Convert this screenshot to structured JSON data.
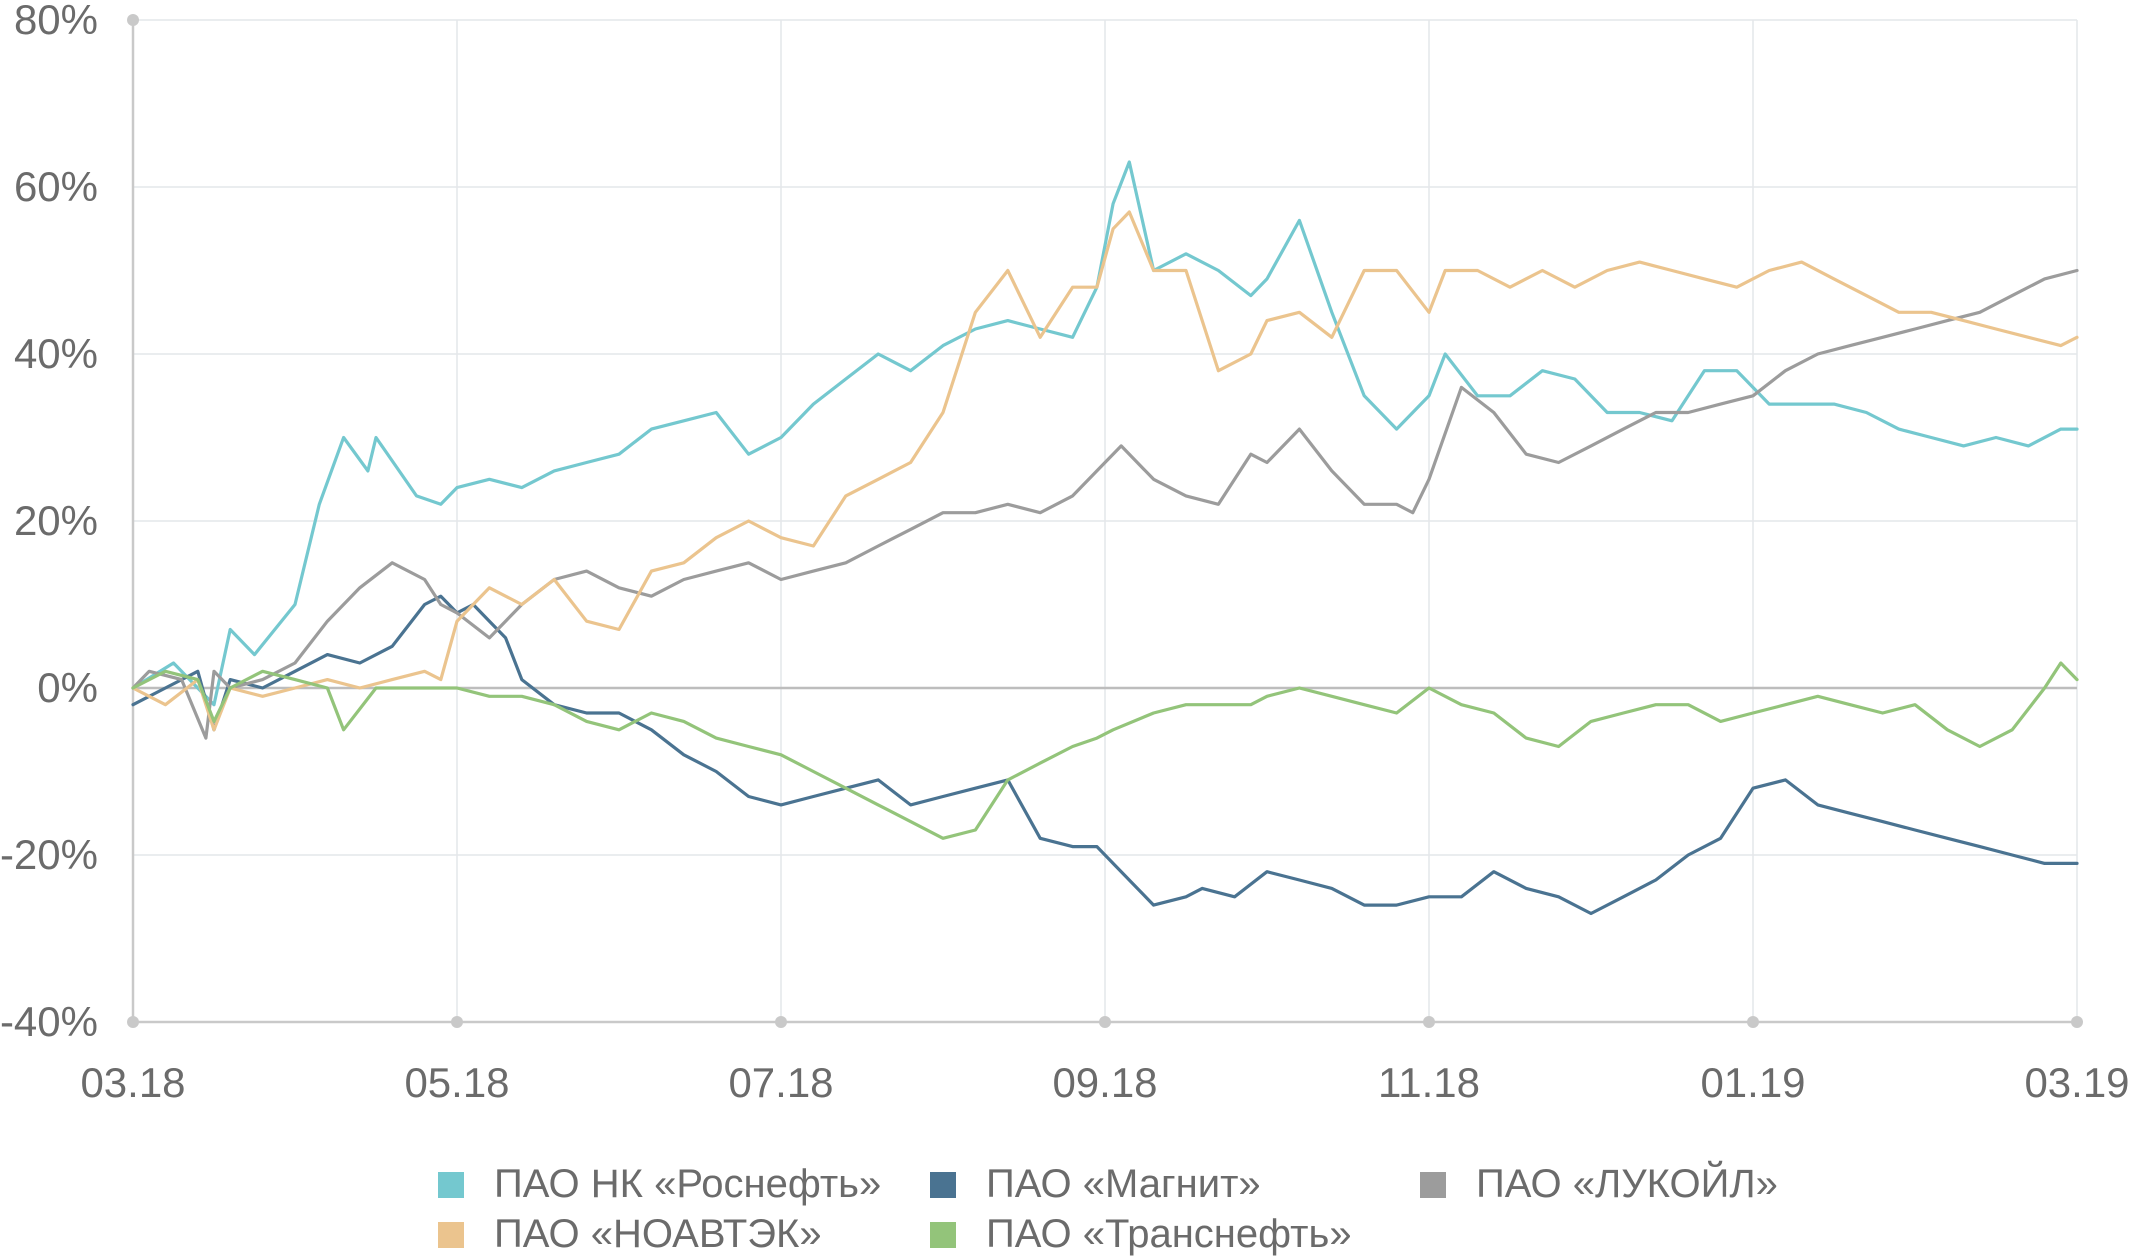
{
  "chart_data": {
    "type": "line",
    "title": "",
    "xlabel": "",
    "ylabel": "",
    "ylim": [
      -40,
      80
    ],
    "y_ticks": [
      -40,
      -20,
      0,
      20,
      40,
      60,
      80
    ],
    "y_tick_labels": [
      "-40%",
      "-20%",
      "0%",
      "20%",
      "40%",
      "60%",
      "80%"
    ],
    "x_tick_labels": [
      "03.18",
      "05.18",
      "07.18",
      "09.18",
      "11.18",
      "01.19",
      "03.19"
    ],
    "x_range": [
      0,
      12
    ],
    "grid": true,
    "legend_position": "bottom",
    "series": [
      {
        "name": "ПАО НК «Роснефть»",
        "color": "#74c8cf",
        "x": [
          0,
          0.25,
          0.5,
          0.6,
          0.75,
          1.0,
          1.15,
          1.3,
          1.45,
          1.5,
          1.75,
          1.9,
          2.0,
          2.2,
          2.4,
          2.6,
          2.8,
          3.0,
          3.2,
          3.4,
          3.6,
          3.8,
          4.0,
          4.2,
          4.4,
          4.6,
          4.8,
          5.0,
          5.2,
          5.4,
          5.6,
          5.8,
          5.95,
          6.05,
          6.15,
          6.3,
          6.5,
          6.7,
          6.9,
          7.0,
          7.2,
          7.4,
          7.6,
          7.8,
          8.0,
          8.1,
          8.3,
          8.5,
          8.7,
          8.9,
          9.1,
          9.3,
          9.5,
          9.7,
          9.9,
          10.1,
          10.3,
          10.5,
          10.7,
          10.9,
          11.1,
          11.3,
          11.5,
          11.7,
          11.9,
          12.0
        ],
        "values": [
          0,
          3,
          -2,
          7,
          4,
          10,
          22,
          30,
          26,
          30,
          23,
          22,
          24,
          25,
          24,
          26,
          27,
          28,
          31,
          32,
          33,
          28,
          30,
          34,
          37,
          40,
          38,
          41,
          43,
          44,
          43,
          42,
          48,
          58,
          63,
          50,
          52,
          50,
          47,
          49,
          56,
          45,
          35,
          31,
          35,
          40,
          35,
          35,
          38,
          37,
          33,
          33,
          32,
          38,
          38,
          34,
          34,
          34,
          33,
          31,
          30,
          29,
          30,
          29,
          31,
          31
        ]
      },
      {
        "name": "ПАО «Магнит»",
        "color": "#4a7391",
        "x": [
          0,
          0.2,
          0.4,
          0.5,
          0.6,
          0.8,
          1.0,
          1.2,
          1.4,
          1.6,
          1.8,
          1.9,
          2.0,
          2.1,
          2.2,
          2.3,
          2.4,
          2.6,
          2.8,
          3.0,
          3.2,
          3.4,
          3.6,
          3.8,
          4.0,
          4.2,
          4.4,
          4.6,
          4.8,
          5.0,
          5.2,
          5.4,
          5.6,
          5.8,
          5.95,
          6.05,
          6.3,
          6.5,
          6.6,
          6.8,
          7.0,
          7.2,
          7.4,
          7.6,
          7.8,
          8.0,
          8.2,
          8.4,
          8.6,
          8.8,
          9.0,
          9.2,
          9.4,
          9.6,
          9.8,
          10.0,
          10.2,
          10.4,
          10.6,
          10.8,
          11.0,
          11.2,
          11.4,
          11.6,
          11.8,
          12.0
        ],
        "values": [
          -2,
          0,
          2,
          -5,
          1,
          0,
          2,
          4,
          3,
          5,
          10,
          11,
          9,
          10,
          8,
          6,
          1,
          -2,
          -3,
          -3,
          -5,
          -8,
          -10,
          -13,
          -14,
          -13,
          -12,
          -11,
          -14,
          -13,
          -12,
          -11,
          -18,
          -19,
          -19,
          -21,
          -26,
          -25,
          -24,
          -25,
          -22,
          -23,
          -24,
          -26,
          -26,
          -25,
          -25,
          -22,
          -24,
          -25,
          -27,
          -25,
          -23,
          -20,
          -18,
          -12,
          -11,
          -14,
          -15,
          -16,
          -17,
          -18,
          -19,
          -20,
          -21,
          -21
        ]
      },
      {
        "name": "ПАО «ЛУКОЙЛ»",
        "color": "#9c9c9c",
        "x": [
          0,
          0.1,
          0.3,
          0.45,
          0.5,
          0.6,
          0.8,
          1.0,
          1.2,
          1.4,
          1.6,
          1.8,
          1.9,
          2.0,
          2.2,
          2.4,
          2.6,
          2.8,
          3.0,
          3.2,
          3.4,
          3.6,
          3.8,
          4.0,
          4.2,
          4.4,
          4.6,
          4.8,
          5.0,
          5.2,
          5.4,
          5.6,
          5.8,
          6.0,
          6.1,
          6.3,
          6.5,
          6.7,
          6.9,
          7.0,
          7.2,
          7.4,
          7.6,
          7.8,
          7.9,
          8.0,
          8.2,
          8.4,
          8.6,
          8.8,
          9.0,
          9.2,
          9.4,
          9.6,
          9.8,
          10.0,
          10.2,
          10.4,
          10.6,
          10.8,
          11.0,
          11.2,
          11.4,
          11.6,
          11.8,
          12.0
        ],
        "values": [
          0,
          2,
          1,
          -6,
          2,
          0,
          1,
          3,
          8,
          12,
          15,
          13,
          10,
          9,
          6,
          10,
          13,
          14,
          12,
          11,
          13,
          14,
          15,
          13,
          14,
          15,
          17,
          19,
          21,
          21,
          22,
          21,
          23,
          27,
          29,
          25,
          23,
          22,
          28,
          27,
          31,
          26,
          22,
          22,
          21,
          25,
          36,
          33,
          28,
          27,
          29,
          31,
          33,
          33,
          34,
          35,
          38,
          40,
          41,
          42,
          43,
          44,
          45,
          47,
          49,
          50
        ]
      },
      {
        "name": "ПАО «НОАВТЭК»",
        "color": "#ebc48e",
        "x": [
          0,
          0.2,
          0.4,
          0.5,
          0.6,
          0.8,
          1.0,
          1.2,
          1.4,
          1.6,
          1.8,
          1.9,
          2.0,
          2.2,
          2.4,
          2.6,
          2.8,
          3.0,
          3.2,
          3.4,
          3.6,
          3.8,
          4.0,
          4.2,
          4.4,
          4.6,
          4.8,
          5.0,
          5.2,
          5.4,
          5.6,
          5.8,
          5.95,
          6.05,
          6.15,
          6.3,
          6.5,
          6.7,
          6.9,
          7.0,
          7.2,
          7.4,
          7.6,
          7.8,
          8.0,
          8.1,
          8.3,
          8.5,
          8.7,
          8.9,
          9.1,
          9.3,
          9.5,
          9.7,
          9.9,
          10.1,
          10.3,
          10.5,
          10.7,
          10.9,
          11.1,
          11.3,
          11.5,
          11.7,
          11.9,
          12.0
        ],
        "values": [
          0,
          -2,
          1,
          -5,
          0,
          -1,
          0,
          1,
          0,
          1,
          2,
          1,
          8,
          12,
          10,
          13,
          8,
          7,
          14,
          15,
          18,
          20,
          18,
          17,
          23,
          25,
          27,
          33,
          45,
          50,
          42,
          48,
          48,
          55,
          57,
          50,
          50,
          38,
          40,
          44,
          45,
          42,
          50,
          50,
          45,
          50,
          50,
          48,
          50,
          48,
          50,
          51,
          50,
          49,
          48,
          50,
          51,
          49,
          47,
          45,
          45,
          44,
          43,
          42,
          41,
          42
        ]
      },
      {
        "name": "ПАО «Транснефть»",
        "color": "#93c47a",
        "x": [
          0,
          0.2,
          0.4,
          0.5,
          0.6,
          0.8,
          1.0,
          1.2,
          1.3,
          1.5,
          1.7,
          1.9,
          2.0,
          2.2,
          2.4,
          2.6,
          2.8,
          3.0,
          3.2,
          3.4,
          3.6,
          3.8,
          4.0,
          4.2,
          4.4,
          4.6,
          4.8,
          5.0,
          5.2,
          5.4,
          5.6,
          5.8,
          5.95,
          6.05,
          6.3,
          6.5,
          6.7,
          6.9,
          7.0,
          7.2,
          7.4,
          7.6,
          7.8,
          8.0,
          8.2,
          8.4,
          8.6,
          8.8,
          9.0,
          9.2,
          9.4,
          9.6,
          9.8,
          10.0,
          10.2,
          10.4,
          10.6,
          10.8,
          11.0,
          11.2,
          11.4,
          11.6,
          11.8,
          11.9,
          12.0
        ],
        "values": [
          0,
          2,
          1,
          -4,
          0,
          2,
          1,
          0,
          -5,
          0,
          0,
          0,
          0,
          -1,
          -1,
          -2,
          -4,
          -5,
          -3,
          -4,
          -6,
          -7,
          -8,
          -10,
          -12,
          -14,
          -16,
          -18,
          -17,
          -11,
          -9,
          -7,
          -6,
          -5,
          -3,
          -2,
          -2,
          -2,
          -1,
          0,
          -1,
          -2,
          -3,
          0,
          -2,
          -3,
          -6,
          -7,
          -4,
          -3,
          -2,
          -2,
          -4,
          -3,
          -2,
          -1,
          -2,
          -3,
          -2,
          -5,
          -7,
          -5,
          0,
          3,
          1
        ]
      }
    ]
  },
  "legend": {
    "items": [
      {
        "label": "ПАО НК «Роснефть»",
        "color": "#74c8cf"
      },
      {
        "label": "ПАО «Магнит»",
        "color": "#4a7391"
      },
      {
        "label": "ПАО «ЛУКОЙЛ»",
        "color": "#9c9c9c"
      },
      {
        "label": "ПАО «НОАВТЭК»",
        "color": "#ebc48e"
      },
      {
        "label": "ПАО «Транснефть»",
        "color": "#93c47a"
      }
    ]
  }
}
